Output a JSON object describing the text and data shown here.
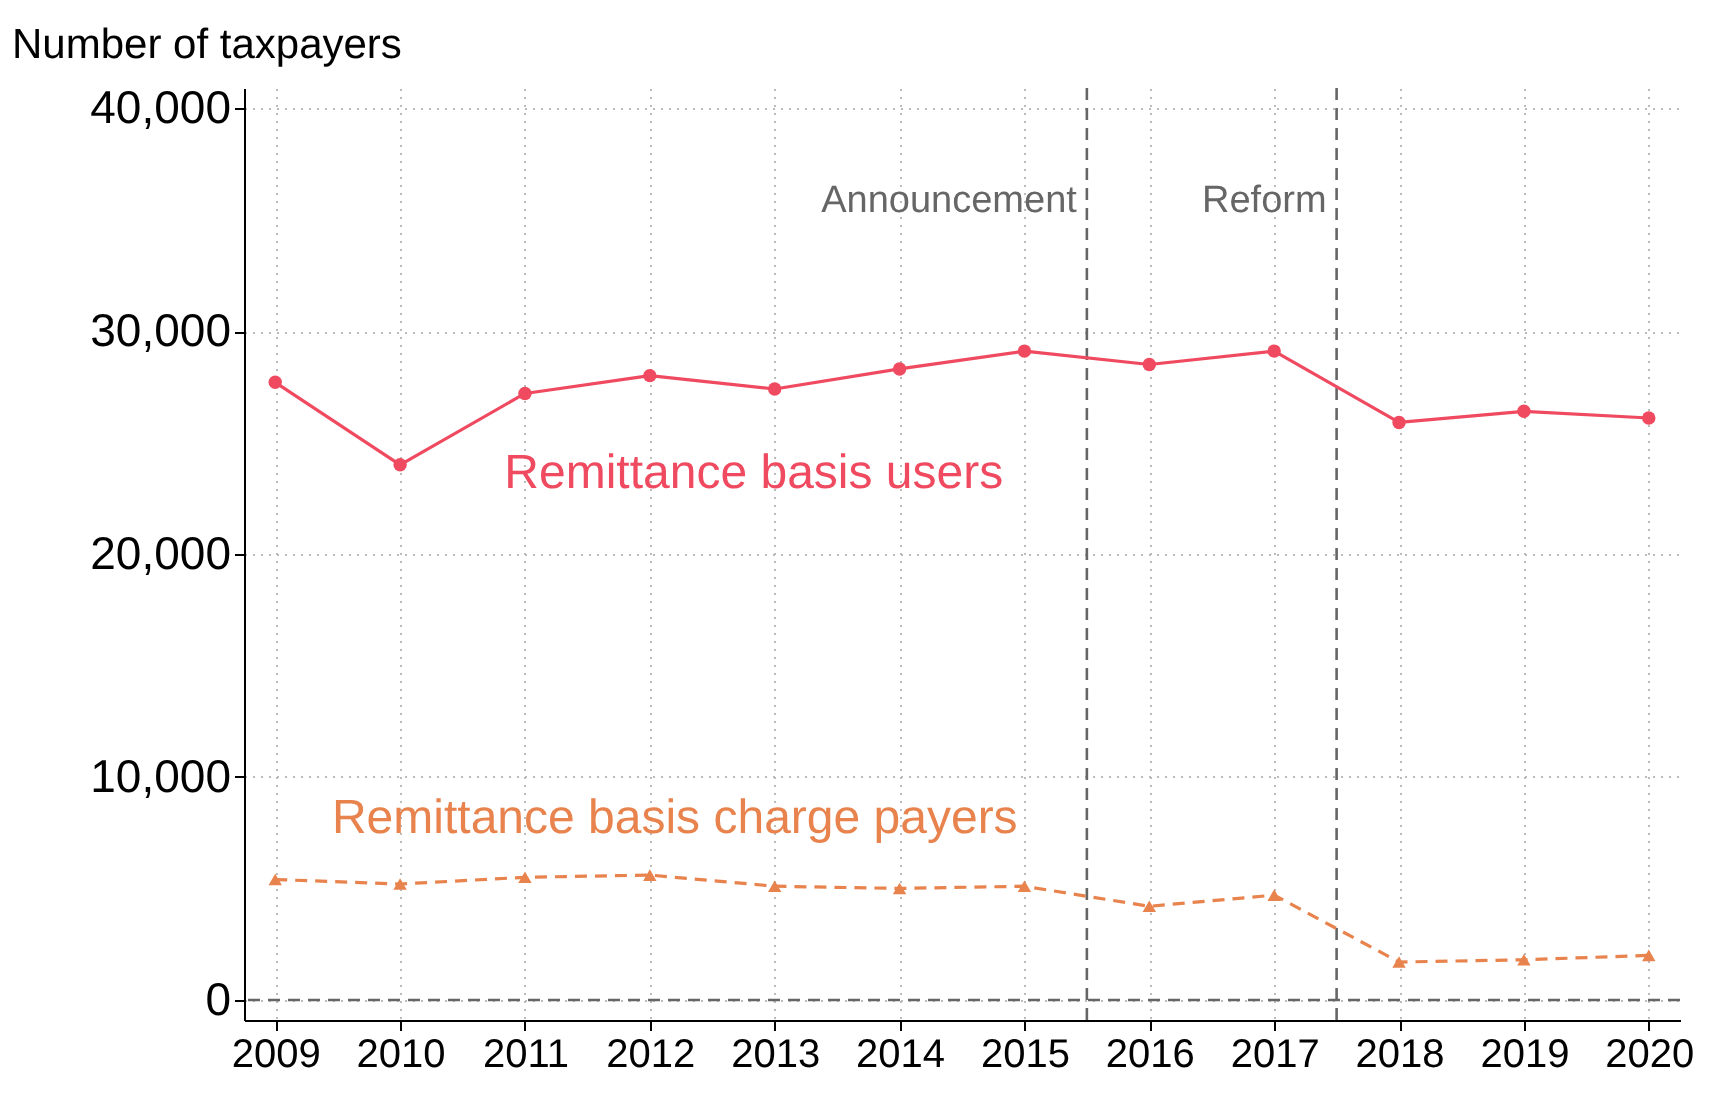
{
  "chart_data": {
    "type": "line",
    "ylabel": "Number of taxpayers",
    "x": [
      2009,
      2010,
      2011,
      2012,
      2013,
      2014,
      2015,
      2016,
      2017,
      2018,
      2019,
      2020
    ],
    "xlim": [
      2008.75,
      2020.25
    ],
    "xticks": [
      2009,
      2010,
      2011,
      2012,
      2013,
      2014,
      2015,
      2016,
      2017,
      2018,
      2019,
      2020
    ],
    "ylim": [
      -900,
      40900
    ],
    "yticks": [
      {
        "value": 0,
        "label": "0"
      },
      {
        "value": 10000,
        "label": "10,000"
      },
      {
        "value": 20000,
        "label": "20,000"
      },
      {
        "value": 30000,
        "label": "30,000"
      },
      {
        "value": 40000,
        "label": "40,000"
      }
    ],
    "grid": true,
    "legend": false,
    "series": [
      {
        "name": "Remittance basis users",
        "color": "#ef4a60",
        "marker": "circle",
        "line_style": "solid",
        "values": [
          27700,
          24000,
          27200,
          28000,
          27400,
          28300,
          29100,
          28500,
          29100,
          25900,
          26400,
          26100
        ]
      },
      {
        "name": "Remittance basis charge payers",
        "color": "#e8834d",
        "marker": "triangle",
        "line_style": "dashed",
        "values": [
          5400,
          5200,
          5500,
          5600,
          5100,
          5000,
          5100,
          4200,
          4700,
          1700,
          1800,
          2000
        ]
      }
    ],
    "ref_lines": [
      {
        "axis": "x",
        "value": 2015.5,
        "label": "Announcement",
        "color": "#666666",
        "line_style": "dashed"
      },
      {
        "axis": "x",
        "value": 2017.5,
        "label": "Reform",
        "color": "#666666",
        "line_style": "dashed"
      },
      {
        "axis": "y",
        "value": 0,
        "label": null,
        "color": "#666666",
        "line_style": "dashed"
      }
    ]
  }
}
